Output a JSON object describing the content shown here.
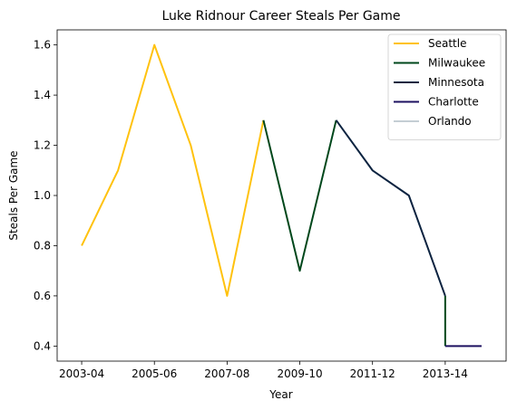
{
  "chart_data": {
    "type": "line",
    "title": "Luke Ridnour Career Steals Per Game",
    "xlabel": "Year",
    "ylabel": "Steals Per Game",
    "x_tick_labels": [
      "2003-04",
      "2005-06",
      "2007-08",
      "2009-10",
      "2011-12",
      "2013-14"
    ],
    "x_tick_positions": [
      0,
      2,
      4,
      6,
      8,
      10
    ],
    "y_ticks": [
      0.4,
      0.6,
      0.8,
      1.0,
      1.2,
      1.4,
      1.6
    ],
    "y_tick_labels": [
      "0.4",
      "0.6",
      "0.8",
      "1.0",
      "1.2",
      "1.4",
      "1.6"
    ],
    "xlim": [
      -0.675,
      11.675
    ],
    "ylim": [
      0.34,
      1.66
    ],
    "grid": false,
    "legend_position": "top-right",
    "series": [
      {
        "name": "Seattle",
        "color": "#FFC20E",
        "points": [
          [
            0,
            0.8
          ],
          [
            1,
            1.1
          ],
          [
            2,
            1.6
          ],
          [
            3,
            1.2
          ],
          [
            4,
            0.6
          ],
          [
            5,
            1.3
          ]
        ]
      },
      {
        "name": "Milwaukee",
        "color": "#00471B",
        "points": [
          [
            5,
            1.3
          ],
          [
            6,
            0.7
          ],
          [
            7,
            1.3
          ]
        ]
      },
      {
        "name": "Minnesota",
        "color": "#0C2340",
        "points": [
          [
            7,
            1.3
          ],
          [
            8,
            1.1
          ],
          [
            9,
            1.0
          ],
          [
            10,
            0.6
          ]
        ]
      },
      {
        "name": "Charlotte",
        "color": "#1D1160",
        "points": [
          [
            10,
            0.4
          ],
          [
            11,
            0.4
          ]
        ]
      },
      {
        "name": "Orlando",
        "color": "#C4CED4",
        "points": []
      }
    ],
    "connectors": [
      {
        "color": "#00471B",
        "points": [
          [
            10,
            0.6
          ],
          [
            10,
            0.4
          ]
        ]
      }
    ]
  }
}
